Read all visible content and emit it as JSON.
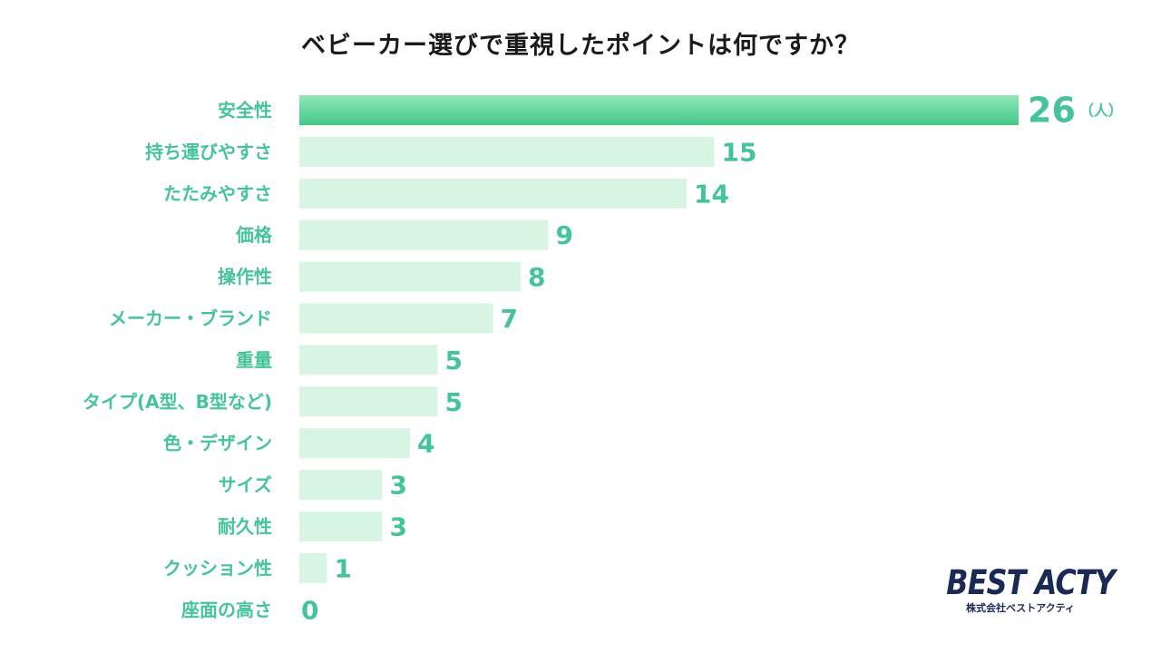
{
  "chart_data": {
    "type": "bar",
    "orientation": "horizontal",
    "title": "ベビーカー選びで重視したポイントは何ですか？",
    "unit": "（人）",
    "categories": [
      "安全性",
      "持ち運びやすさ",
      "たたみやすさ",
      "価格",
      "操作性",
      "メーカー・ブランド",
      "重量",
      "タイプ(A型、B型など)",
      "色・デザイン",
      "サイズ",
      "耐久性",
      "クッション性",
      "座面の高さ"
    ],
    "values": [
      26,
      15,
      14,
      9,
      8,
      7,
      5,
      5,
      4,
      3,
      3,
      1,
      0
    ],
    "xlim": [
      0,
      26
    ],
    "grid": false,
    "legend": "none",
    "colors": {
      "highlight_bar_top": "#8fe8b4",
      "highlight_bar_bottom": "#45c68b",
      "bar": "#d8f5e3",
      "value_text": "#45c49a",
      "label_text": "#45c49a",
      "title_text": "#1a1a1a"
    }
  },
  "logo": {
    "name": "BEST ACTY",
    "subtitle": "株式会社ベストアクティ",
    "color": "#1b2a55"
  }
}
